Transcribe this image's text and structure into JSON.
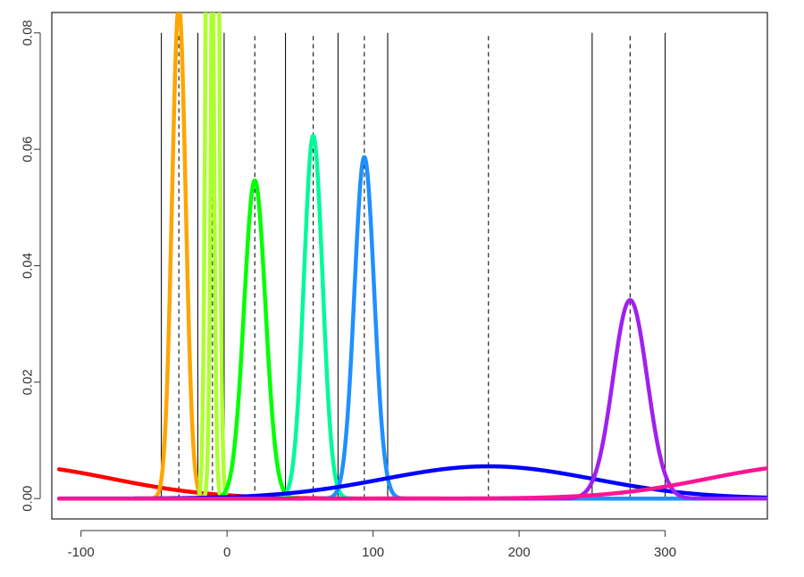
{
  "chart_data": {
    "type": "line",
    "title": "",
    "xlabel": "",
    "ylabel": "",
    "xlim": [
      -120,
      370
    ],
    "ylim": [
      -0.0035,
      0.0835
    ],
    "x_ticks": [
      -100,
      0,
      100,
      200,
      300
    ],
    "x_tick_labels": [
      "-100",
      "0",
      "100",
      "200",
      "300"
    ],
    "y_ticks": [
      0.0,
      0.02,
      0.04,
      0.06,
      0.08
    ],
    "y_tick_labels": [
      "0.00",
      "0.02",
      "0.04",
      "0.06",
      "0.08"
    ],
    "grid": false,
    "legend": "none",
    "series": [
      {
        "color": "#ff0000",
        "mean": -150,
        "sd": 70,
        "x_range": [
          -115,
          370
        ]
      },
      {
        "color": "#ffa500",
        "mean": -33,
        "sd": 4.7,
        "x_range": [
          -115,
          370
        ]
      },
      {
        "color": "#adff2f",
        "mean": -12,
        "sd": 2.1,
        "x_range": [
          -115,
          370
        ]
      },
      {
        "color": "#adff2f",
        "mean": -8,
        "sd": 2.1,
        "x_range": [
          -115,
          370
        ]
      },
      {
        "color": "#00ff00",
        "mean": 19,
        "sd": 7.3,
        "x_range": [
          -115,
          370
        ]
      },
      {
        "color": "#00fa9a",
        "mean": 59,
        "sd": 6.4,
        "x_range": [
          -115,
          370
        ]
      },
      {
        "color": "#1e90ff",
        "mean": 94,
        "sd": 6.8,
        "x_range": [
          -115,
          370
        ]
      },
      {
        "color": "#0000ff",
        "mean": 179,
        "sd": 72,
        "x_range": [
          -115,
          370
        ]
      },
      {
        "color": "#a020f0",
        "mean": 276,
        "sd": 11.7,
        "x_range": [
          -115,
          370
        ]
      },
      {
        "color": "#ff1493",
        "mean": 400,
        "sd": 70,
        "x_range": [
          -115,
          370
        ]
      }
    ],
    "vertical_lines": {
      "solid": [
        -45,
        -20,
        -2,
        40,
        76,
        110,
        250,
        300
      ],
      "dashed": [
        -33,
        -10,
        19,
        59,
        94,
        179,
        276
      ],
      "y_range": [
        0,
        0.08
      ]
    }
  }
}
